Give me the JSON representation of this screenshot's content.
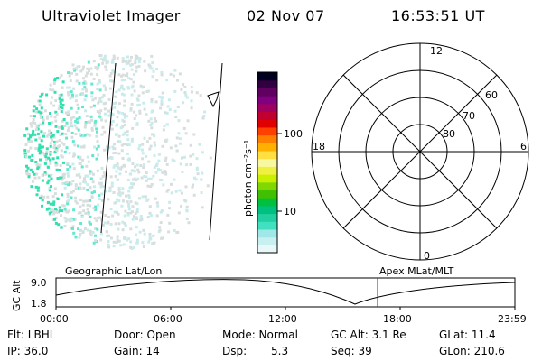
{
  "header": {
    "instrument": "Ultraviolet Imager",
    "date": "02 Nov 07",
    "time": "16:53:51 UT"
  },
  "colorbar": {
    "unit_label": "photon cm⁻²s⁻¹",
    "ticks": [
      "100",
      "10"
    ],
    "colors": [
      "#e8f8f8",
      "#c8f0f0",
      "#a0e8e8",
      "#40e0c0",
      "#20d0a0",
      "#00c080",
      "#00c040",
      "#40c000",
      "#80d800",
      "#c8f000",
      "#f0f040",
      "#f8f8a0",
      "#ffe040",
      "#ffb000",
      "#ff8000",
      "#ff4000",
      "#e00000",
      "#c00030",
      "#a00060",
      "#800080",
      "#600060",
      "#300040",
      "#000020"
    ]
  },
  "polar_plot": {
    "mlt_labels": [
      "12",
      "18",
      "6",
      "0"
    ],
    "lat_labels": [
      "60",
      "70",
      "80"
    ]
  },
  "alt_plot": {
    "left_title": "Geographic Lat/Lon",
    "right_title": "Apex MLat/MLT",
    "ylabel": "GC Alt",
    "y_ticks": [
      "9.0",
      "1.8"
    ],
    "x_ticks": [
      "00:00",
      "06:00",
      "12:00",
      "18:00",
      "23:59"
    ],
    "marker_color": "#c00000"
  },
  "info": {
    "flt": "Flt: LBHL",
    "door": "Door: Open",
    "mode": "Mode: Normal",
    "gc_alt": "GC Alt: 3.1 Re",
    "glat": "GLat: 11.4",
    "ip": "IP: 36.0",
    "gain": "Gain: 14",
    "dsp_label": "Dsp:",
    "dsp_value": "5.3",
    "seq": "Seq: 39",
    "glon": "GLon: 210.6"
  }
}
